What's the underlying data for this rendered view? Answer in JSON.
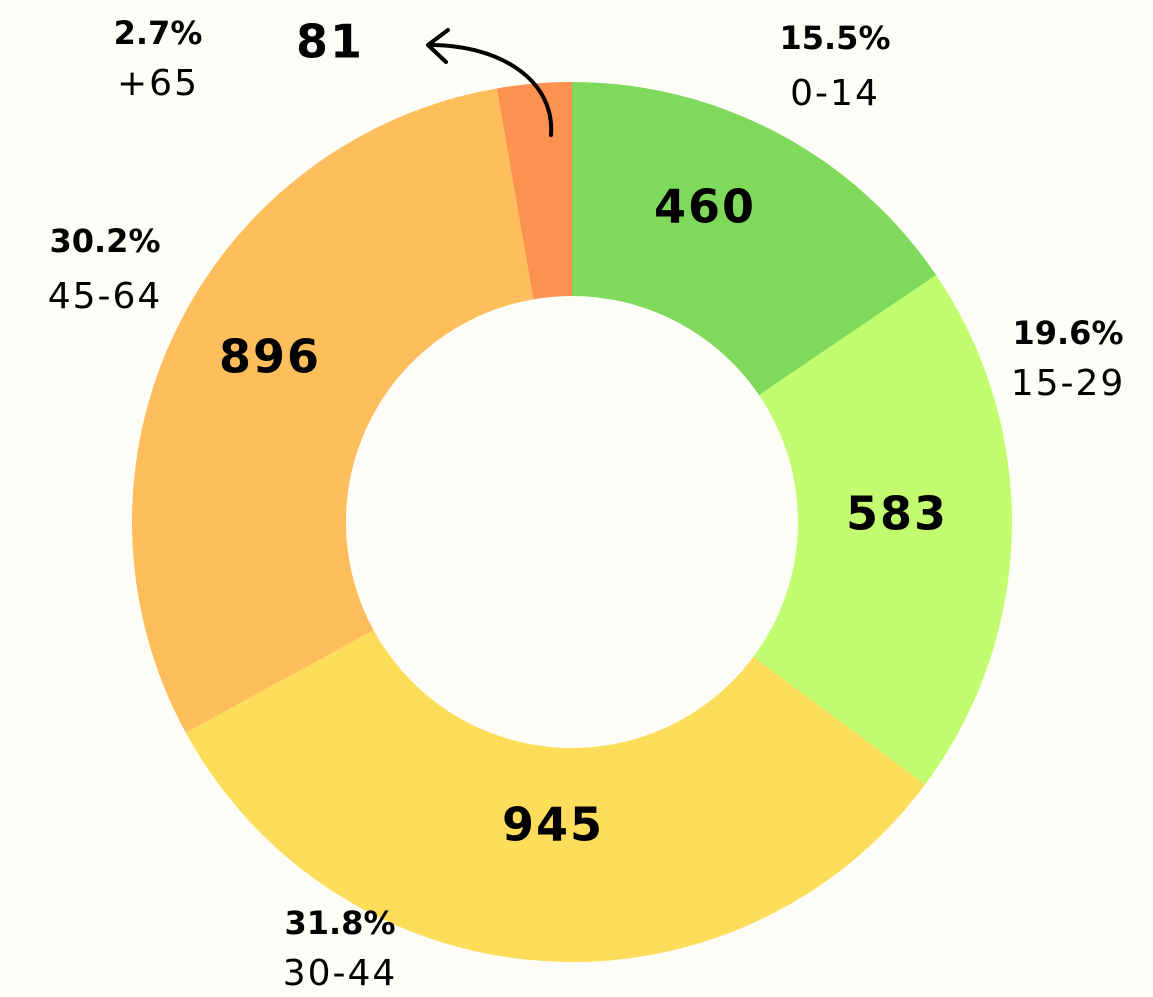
{
  "chart_data": {
    "type": "donut",
    "categories": [
      "0-14",
      "15-29",
      "30-44",
      "45-64",
      "+65"
    ],
    "values": [
      460,
      583,
      945,
      896,
      81
    ],
    "percentages": [
      15.5,
      19.6,
      31.8,
      30.2,
      2.7
    ],
    "percentage_labels": [
      "15.5%",
      "19.6%",
      "31.8%",
      "30.2%",
      "2.7%"
    ],
    "colors": [
      "#7fd95b",
      "#c2fd6f",
      "#fedd5a",
      "#febe5c",
      "#fd9150"
    ]
  }
}
